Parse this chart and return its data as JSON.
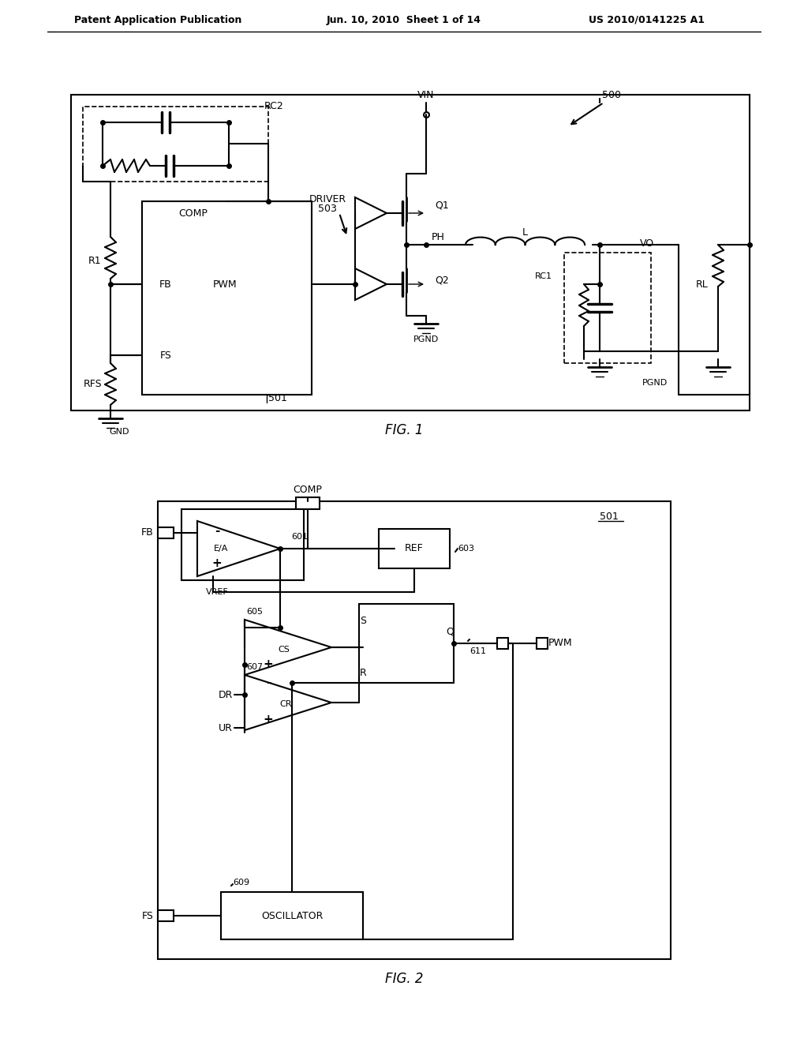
{
  "header_left": "Patent Application Publication",
  "header_center": "Jun. 10, 2010  Sheet 1 of 14",
  "header_right": "US 2010/0141225 A1",
  "fig1_caption": "FIG. 1",
  "fig2_caption": "FIG. 2",
  "background": "#ffffff",
  "line_color": "#000000",
  "fig1_number": "500",
  "fig2_number": "501"
}
